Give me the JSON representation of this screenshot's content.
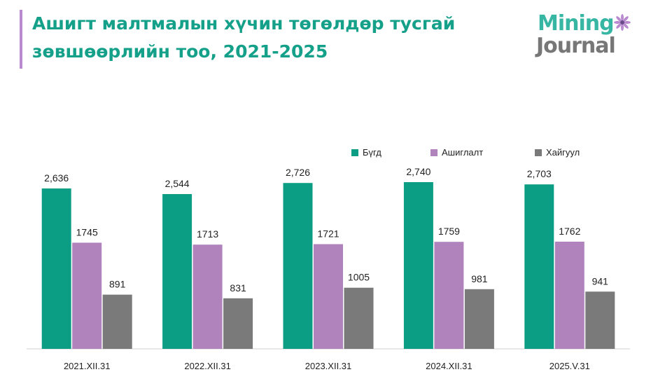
{
  "header": {
    "title_line1": "Ашигт малтмалын хүчин төгөлдөр тусгай",
    "title_line2": "зөвшөөрлийн тоо, 2021-2025"
  },
  "logo": {
    "word1": "Mining",
    "word2": "Journal"
  },
  "colors": {
    "title": "#15a08a",
    "accent": "#b98ad0"
  },
  "chart_data": {
    "type": "bar",
    "categories": [
      "2021.XII.31",
      "2022.XII.31",
      "2023.XII.31",
      "2024.XII.31",
      "2025.V.31"
    ],
    "series": [
      {
        "name": "Бүгд",
        "color": "#0b9e84",
        "values": [
          2636,
          2544,
          2726,
          2740,
          2703
        ],
        "labels": [
          "2,636",
          "2,544",
          "2,726",
          "2,740",
          "2,703"
        ]
      },
      {
        "name": "Ашиглалт",
        "color": "#b083bd",
        "values": [
          1745,
          1713,
          1721,
          1759,
          1762
        ],
        "labels": [
          "1745",
          "1713",
          "1721",
          "1759",
          "1762"
        ]
      },
      {
        "name": "Хайгуул",
        "color": "#7a7a7a",
        "values": [
          891,
          831,
          1005,
          981,
          941
        ],
        "labels": [
          "891",
          "831",
          "1005",
          "981",
          "941"
        ]
      }
    ],
    "ylim": [
      0,
      2740
    ],
    "legend_position": "top-right",
    "grid": false
  }
}
